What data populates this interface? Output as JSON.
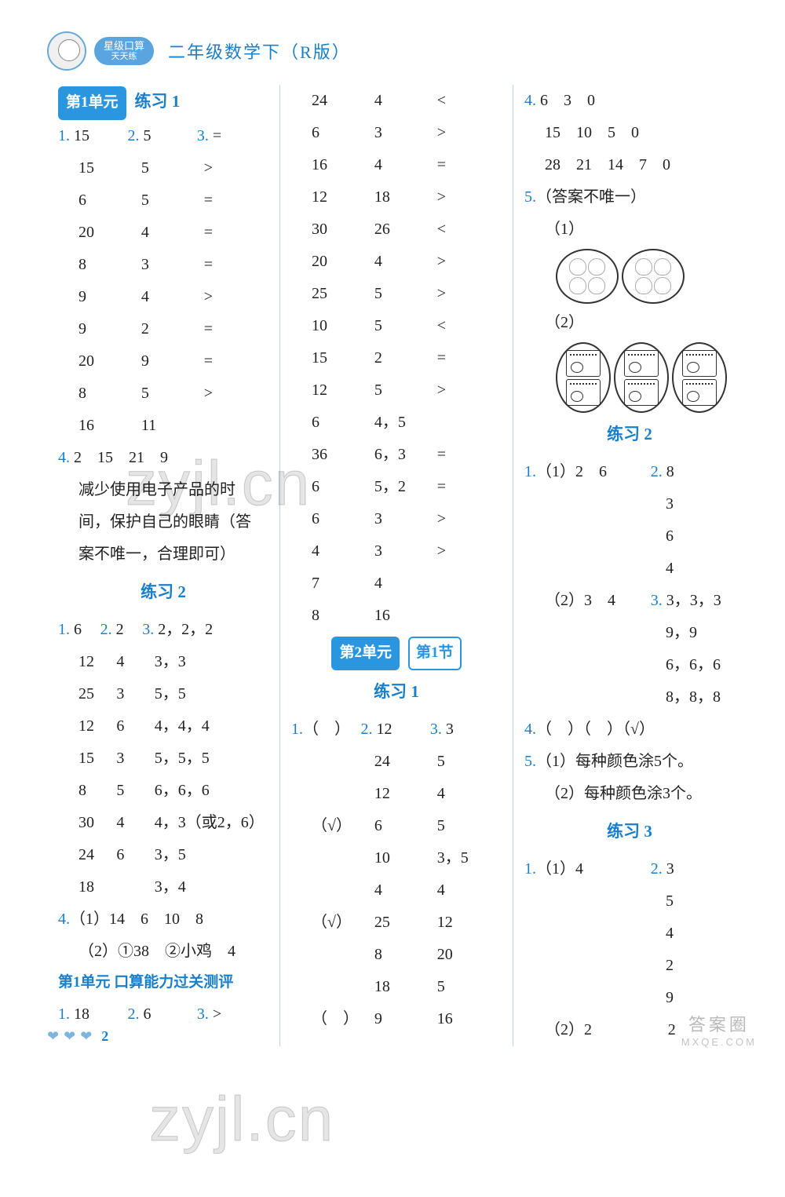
{
  "header": {
    "badge_line1": "星级口算",
    "badge_line2": "天天练",
    "book_title": "二年级数学下（R版）"
  },
  "col1": {
    "u1": "第1单元",
    "p1": "练习 1",
    "q1": "1.",
    "q1v": "15",
    "q2": "2.",
    "q2v": "5",
    "q3": "3.",
    "q3v": "=",
    "t1": [
      [
        "15",
        "5",
        ">"
      ],
      [
        "6",
        "5",
        "="
      ],
      [
        "20",
        "4",
        "="
      ],
      [
        "8",
        "3",
        "="
      ],
      [
        "9",
        "4",
        ">"
      ],
      [
        "9",
        "2",
        "="
      ],
      [
        "20",
        "9",
        "="
      ],
      [
        "8",
        "5",
        ">"
      ],
      [
        "16",
        "11",
        ""
      ]
    ],
    "q4": "4.",
    "q4v": "2　15　21　9",
    "q4text1": "减少使用电子产品的时",
    "q4text2": "间，保护自己的眼睛（答",
    "q4text3": "案不唯一，合理即可）",
    "p2": "练习 2",
    "r2_q1": "1.",
    "r2_q1v": "6",
    "r2_q2": "2.",
    "r2_q2v": "2",
    "r2_q3": "3.",
    "r2_q3v": "2，2，2",
    "t2": [
      [
        "12",
        "4",
        "3，3"
      ],
      [
        "25",
        "3",
        "5，5"
      ],
      [
        "12",
        "6",
        "4，4，4"
      ],
      [
        "15",
        "3",
        "5，5，5"
      ],
      [
        "8",
        "5",
        "6，6，6"
      ],
      [
        "30",
        "4",
        "4，3（或2，6）"
      ],
      [
        "24",
        "6",
        "3，5"
      ],
      [
        "18",
        "",
        "3，4"
      ]
    ],
    "q4b": "4.",
    "q4b1": "（1）14　6　10　8",
    "q4b2": "（2）①38　②小鸡　4",
    "test_title": "第1单元 口算能力过关测评",
    "test_q1": "1.",
    "test_q1v": "18",
    "test_q2": "2.",
    "test_q2v": "6",
    "test_q3": "3.",
    "test_q3v": ">"
  },
  "col2": {
    "t_top": [
      [
        "24",
        "4",
        "<"
      ],
      [
        "6",
        "3",
        ">"
      ],
      [
        "16",
        "4",
        "="
      ],
      [
        "12",
        "18",
        ">"
      ],
      [
        "30",
        "26",
        "<"
      ],
      [
        "20",
        "4",
        ">"
      ],
      [
        "25",
        "5",
        ">"
      ],
      [
        "10",
        "5",
        "<"
      ],
      [
        "15",
        "2",
        "="
      ],
      [
        "12",
        "5",
        ">"
      ],
      [
        "6",
        "4，5",
        ""
      ],
      [
        "36",
        "6，3",
        "="
      ],
      [
        "6",
        "5，2",
        "="
      ],
      [
        "6",
        "3",
        ">"
      ],
      [
        "4",
        "3",
        ">"
      ],
      [
        "7",
        "4",
        ""
      ],
      [
        "8",
        "16",
        ""
      ]
    ],
    "u2": "第2单元",
    "s1": "第1节",
    "p1": "练习 1",
    "r_q1": "1.",
    "r_q1v": "（　）",
    "r_q2": "2.",
    "r_q2v": "12",
    "r_q3": "3.",
    "r_q3v": "3",
    "t_bot": [
      [
        "",
        "24",
        "5"
      ],
      [
        "",
        "12",
        "4"
      ],
      [
        "（√）",
        "6",
        "5"
      ],
      [
        "",
        "10",
        "3，5"
      ],
      [
        "",
        "4",
        "4"
      ],
      [
        "（√）",
        "25",
        "12"
      ],
      [
        "",
        "8",
        "20"
      ],
      [
        "",
        "18",
        "5"
      ],
      [
        "（　）",
        "9",
        "16"
      ]
    ]
  },
  "col3": {
    "q4": "4.",
    "q4r": [
      [
        "6",
        "3",
        "0",
        ""
      ],
      [
        "15",
        "10",
        "5",
        "0"
      ],
      [
        "28",
        "21",
        "14",
        "7　0"
      ]
    ],
    "q5": "5.",
    "q5t": "（答案不唯一）",
    "q5_1": "（1）",
    "q5_2": "（2）",
    "p2": "练习 2",
    "r_q1": "1.",
    "r_q1v": "（1）2　6",
    "r_q2": "2.",
    "r_q2v": "8",
    "t1": [
      "3",
      "6",
      "4"
    ],
    "r_sub2": "（2）3　4",
    "r_q3": "3.",
    "r_q3v": "3，3，3",
    "t2": [
      "9，9",
      "6，6，6",
      "8，8，8"
    ],
    "q4b": "4.",
    "q4bv": "（　）（　）（√）",
    "q5b": "5.",
    "q5b1": "（1）每种颜色涂5个。",
    "q5b2": "（2）每种颜色涂3个。",
    "p3": "练习 3",
    "r3_q1": "1.",
    "r3_q1v": "（1）4",
    "r3_q2": "2.",
    "r3_q2v": "3",
    "t3": [
      "5",
      "4",
      "2",
      "9"
    ],
    "r3_sub": "（2）2",
    "r3_tail": "2"
  },
  "footer": {
    "page": "2"
  },
  "watermarks": {
    "wm1": "zyjl.cn",
    "wm2": "zyjl.cn"
  },
  "stamp": {
    "l1": "答案圈",
    "l2": "MXQE.COM"
  }
}
